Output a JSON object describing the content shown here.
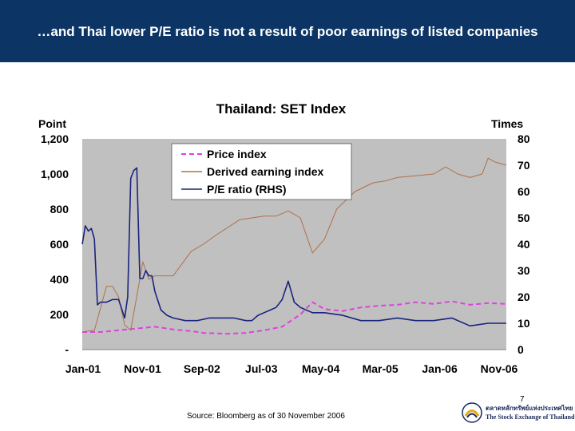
{
  "header": {
    "title": "…and Thai lower P/E ratio is not a result of poor earnings of listed companies"
  },
  "footer": {
    "source": "Source: Bloomberg as of 30 November 2006",
    "page_number": "7"
  },
  "logo": {
    "thai_text": "ตลาดหลักทรัพย์แห่งประเทศไทย",
    "english_text": "The Stock Exchange of Thailand"
  },
  "colors": {
    "header_bg": "#0c3566",
    "plot_bg": "#c0c0c0",
    "price": "#e040e0",
    "earning": "#b0704a",
    "pe": "#1a237e"
  },
  "chart_data": {
    "type": "line",
    "title": "Thailand: SET Index",
    "ylabel": "Point",
    "y2label": "Times",
    "ylim": [
      0,
      1200
    ],
    "y2lim": [
      0,
      80
    ],
    "y_ticks": [
      "-",
      "200",
      "400",
      "600",
      "800",
      "1,000",
      "1,200"
    ],
    "y2_ticks": [
      "0",
      "10",
      "20",
      "30",
      "40",
      "50",
      "60",
      "70",
      "80"
    ],
    "x_ticks": [
      "Jan-01",
      "Nov-01",
      "Sep-02",
      "Jul-03",
      "May-04",
      "Mar-05",
      "Jan-06",
      "Nov-06"
    ],
    "legend": {
      "placement": "top-left"
    },
    "series": [
      {
        "name": "Price index",
        "axis": "left",
        "style": "dashed",
        "color": "#e040e0",
        "x": [
          0,
          3,
          6,
          9,
          12,
          15,
          18,
          20,
          24,
          27,
          30,
          33,
          36,
          38,
          40,
          43,
          46,
          49,
          52,
          55,
          58,
          61,
          64,
          67,
          70
        ],
        "y": [
          100,
          100,
          110,
          120,
          130,
          115,
          105,
          95,
          90,
          95,
          110,
          130,
          200,
          270,
          230,
          220,
          240,
          250,
          255,
          270,
          260,
          275,
          255,
          265,
          260
        ]
      },
      {
        "name": "Derived earning index",
        "axis": "left",
        "style": "solid",
        "color": "#b0704a",
        "x": [
          0,
          2,
          4,
          5,
          6,
          7,
          8,
          10,
          11,
          12,
          15,
          18,
          20,
          22,
          26,
          30,
          32,
          34,
          36,
          38,
          40,
          42,
          45,
          48,
          50,
          52,
          55,
          58,
          60,
          62,
          64,
          66,
          67,
          68,
          70
        ],
        "y": [
          100,
          110,
          360,
          360,
          300,
          140,
          110,
          500,
          400,
          420,
          420,
          560,
          600,
          650,
          740,
          760,
          760,
          790,
          750,
          550,
          630,
          800,
          900,
          950,
          960,
          980,
          990,
          1000,
          1040,
          1000,
          980,
          1000,
          1090,
          1070,
          1050
        ]
      },
      {
        "name": "P/E ratio (RHS)",
        "axis": "right",
        "style": "solid",
        "color": "#1a237e",
        "x": [
          0,
          0.5,
          1,
          1.5,
          2,
          2.5,
          3,
          4,
          5,
          6,
          7,
          7.5,
          8,
          8.5,
          9,
          9.5,
          10,
          10.5,
          11,
          11.5,
          12,
          13,
          14,
          15,
          17,
          19,
          21,
          23,
          25,
          27,
          28,
          29,
          30,
          31,
          32,
          33,
          34,
          35,
          36,
          38,
          40,
          43,
          46,
          49,
          52,
          55,
          58,
          61,
          64,
          67,
          70
        ],
        "y": [
          40,
          47,
          45,
          46,
          42,
          17,
          18,
          18,
          19,
          19,
          12,
          20,
          65,
          68,
          69,
          27,
          27,
          30,
          28,
          28,
          22,
          15,
          13,
          12,
          11,
          11,
          12,
          12,
          12,
          11,
          11,
          13,
          14,
          15,
          16,
          19,
          26,
          18,
          16,
          14,
          14,
          13,
          11,
          11,
          12,
          11,
          11,
          12,
          9,
          10,
          10
        ]
      }
    ]
  }
}
